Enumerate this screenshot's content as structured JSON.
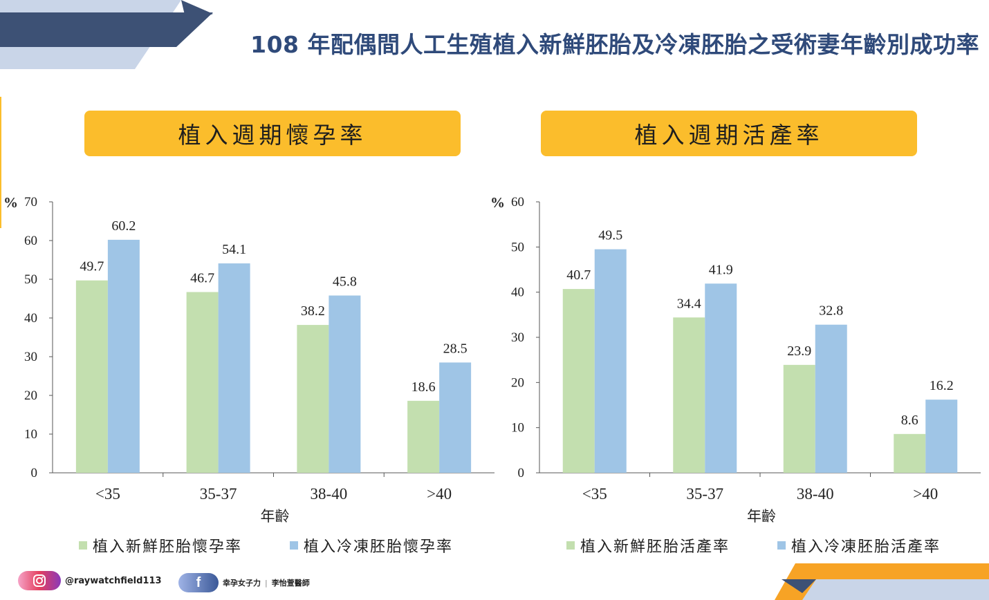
{
  "page": {
    "title": "108 年配偶間人工生殖植入新鮮胚胎及冷凍胚胎之受術妻年齡別成功率"
  },
  "colors": {
    "fresh": "#c3dfaf",
    "frozen": "#9fc5e6",
    "header_bg": "#fbbd2c",
    "title": "#2f4a7a",
    "navy": "#3d5175",
    "light_blue": "#c9d5e8",
    "orange": "#f7a325"
  },
  "footer": {
    "instagram_icon": "instagram-icon",
    "instagram_handle": "@raywatchfield113",
    "facebook_icon": "facebook-icon",
    "facebook_icon_glyph": "f",
    "facebook_name": "幸孕女子力",
    "facebook_separator": "|",
    "facebook_doctor": "李怡萱醫師"
  },
  "chart_data": [
    {
      "type": "bar",
      "title": "植入週期懷孕率",
      "ylabel": "%",
      "xlabel": "年齡",
      "ylim": [
        0,
        70
      ],
      "yticks": [
        0,
        10,
        20,
        30,
        40,
        50,
        60,
        70
      ],
      "categories": [
        "<35",
        "35-37",
        "38-40",
        ">40"
      ],
      "series": [
        {
          "name": "植入新鮮胚胎懷孕率",
          "values": [
            49.7,
            46.7,
            38.2,
            18.6
          ]
        },
        {
          "name": "植入冷凍胚胎懷孕率",
          "values": [
            60.2,
            54.1,
            45.8,
            28.5
          ]
        }
      ],
      "legend": "bottom",
      "grid": false
    },
    {
      "type": "bar",
      "title": "植入週期活產率",
      "ylabel": "%",
      "xlabel": "年齡",
      "ylim": [
        0,
        60
      ],
      "yticks": [
        0,
        10,
        20,
        30,
        40,
        50,
        60
      ],
      "categories": [
        "<35",
        "35-37",
        "38-40",
        ">40"
      ],
      "series": [
        {
          "name": "植入新鮮胚胎活產率",
          "values": [
            40.7,
            34.4,
            23.9,
            8.6
          ]
        },
        {
          "name": "植入冷凍胚胎活產率",
          "values": [
            49.5,
            41.9,
            32.8,
            16.2
          ]
        }
      ],
      "legend": "bottom",
      "grid": false
    }
  ]
}
